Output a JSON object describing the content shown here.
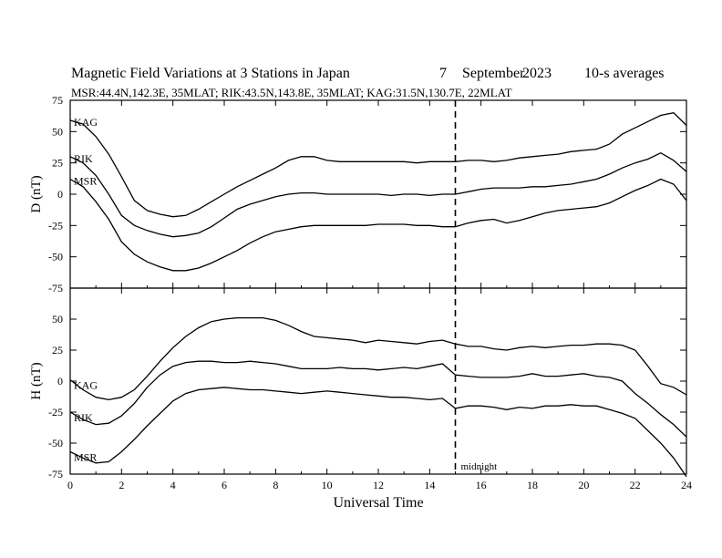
{
  "header": {
    "title": "Magnetic Field Variations at 3 Stations in Japan",
    "day": "7",
    "month": "September",
    "year": "2023",
    "averaging": "10-s averages",
    "stations_line": "MSR:44.4N,142.3E, 35MLAT;  RIK:43.5N,143.8E, 35MLAT;  KAG:31.5N,130.7E, 22MLAT"
  },
  "chart_data": [
    {
      "type": "line",
      "panel": "top",
      "ylabel": "D (nT)",
      "ylim": [
        -75,
        75
      ],
      "yticks": [
        75,
        50,
        25,
        0,
        -25,
        -50,
        -75
      ],
      "xlim": [
        0,
        24
      ],
      "xticks": [
        0,
        2,
        4,
        6,
        8,
        10,
        12,
        14,
        16,
        18,
        20,
        22,
        24
      ],
      "grid": false,
      "series": [
        {
          "name": "KAG",
          "x": [
            0,
            0.5,
            1,
            1.5,
            2,
            2.5,
            3,
            3.5,
            4,
            4.5,
            5,
            5.5,
            6,
            6.5,
            7,
            7.5,
            8,
            8.5,
            9,
            9.5,
            10,
            10.5,
            11,
            11.5,
            12,
            12.5,
            13,
            13.5,
            14,
            14.5,
            15,
            15.5,
            16,
            16.5,
            17,
            17.5,
            18,
            18.5,
            19,
            19.5,
            20,
            20.5,
            21,
            21.5,
            22,
            22.5,
            23,
            23.5,
            24
          ],
          "values": [
            59,
            56,
            46,
            32,
            14,
            -5,
            -13,
            -16,
            -18,
            -17,
            -12,
            -6,
            0,
            6,
            11,
            16,
            21,
            27,
            30,
            30,
            27,
            26,
            26,
            26,
            26,
            26,
            26,
            25,
            26,
            26,
            26,
            27,
            27,
            26,
            27,
            29,
            30,
            31,
            32,
            34,
            35,
            36,
            40,
            48,
            53,
            58,
            63,
            65,
            55
          ]
        },
        {
          "name": "RIK",
          "x": [
            0,
            0.5,
            1,
            1.5,
            2,
            2.5,
            3,
            3.5,
            4,
            4.5,
            5,
            5.5,
            6,
            6.5,
            7,
            7.5,
            8,
            8.5,
            9,
            9.5,
            10,
            10.5,
            11,
            11.5,
            12,
            12.5,
            13,
            13.5,
            14,
            14.5,
            15,
            15.5,
            16,
            16.5,
            17,
            17.5,
            18,
            18.5,
            19,
            19.5,
            20,
            20.5,
            21,
            21.5,
            22,
            22.5,
            23,
            23.5,
            24
          ],
          "values": [
            30,
            25,
            15,
            0,
            -17,
            -25,
            -29,
            -32,
            -34,
            -33,
            -31,
            -26,
            -19,
            -12,
            -8,
            -5,
            -2,
            0,
            1,
            1,
            0,
            0,
            0,
            0,
            0,
            -1,
            0,
            0,
            -1,
            0,
            0,
            2,
            4,
            5,
            5,
            5,
            6,
            6,
            7,
            8,
            10,
            12,
            16,
            21,
            25,
            28,
            33,
            27,
            18
          ]
        },
        {
          "name": "MSR",
          "x": [
            0,
            0.5,
            1,
            1.5,
            2,
            2.5,
            3,
            3.5,
            4,
            4.5,
            5,
            5.5,
            6,
            6.5,
            7,
            7.5,
            8,
            8.5,
            9,
            9.5,
            10,
            10.5,
            11,
            11.5,
            12,
            12.5,
            13,
            13.5,
            14,
            14.5,
            15,
            15.5,
            16,
            16.5,
            17,
            17.5,
            18,
            18.5,
            19,
            19.5,
            20,
            20.5,
            21,
            21.5,
            22,
            22.5,
            23,
            23.5,
            24
          ],
          "values": [
            12,
            6,
            -6,
            -20,
            -38,
            -48,
            -54,
            -58,
            -61,
            -61,
            -59,
            -55,
            -50,
            -45,
            -39,
            -34,
            -30,
            -28,
            -26,
            -25,
            -25,
            -25,
            -25,
            -25,
            -24,
            -24,
            -24,
            -25,
            -25,
            -26,
            -26,
            -23,
            -21,
            -20,
            -23,
            -21,
            -18,
            -15,
            -13,
            -12,
            -11,
            -10,
            -7,
            -2,
            3,
            7,
            12,
            8,
            -5
          ]
        }
      ]
    },
    {
      "type": "line",
      "panel": "bottom",
      "ylabel": "H (nT)",
      "xlabel": "Universal Time",
      "ylim": [
        -75,
        75
      ],
      "yticks": [
        50,
        25,
        0,
        -25,
        -50,
        -75
      ],
      "xlim": [
        0,
        24
      ],
      "xticks": [
        0,
        2,
        4,
        6,
        8,
        10,
        12,
        14,
        16,
        18,
        20,
        22,
        24
      ],
      "grid": false,
      "series": [
        {
          "name": "KAG",
          "x": [
            0,
            0.5,
            1,
            1.5,
            2,
            2.5,
            3,
            3.5,
            4,
            4.5,
            5,
            5.5,
            6,
            6.5,
            7,
            7.5,
            8,
            8.5,
            9,
            9.5,
            10,
            10.5,
            11,
            11.5,
            12,
            12.5,
            13,
            13.5,
            14,
            14.5,
            15,
            15.5,
            16,
            16.5,
            17,
            17.5,
            18,
            18.5,
            19,
            19.5,
            20,
            20.5,
            21,
            21.5,
            22,
            22.5,
            23,
            23.5,
            24
          ],
          "values": [
            1,
            -7,
            -13,
            -15,
            -13,
            -7,
            4,
            16,
            27,
            36,
            43,
            48,
            50,
            51,
            51,
            51,
            49,
            45,
            40,
            36,
            35,
            34,
            33,
            31,
            33,
            32,
            31,
            30,
            32,
            33,
            30,
            28,
            28,
            26,
            25,
            27,
            28,
            27,
            28,
            29,
            29,
            30,
            30,
            29,
            25,
            12,
            -2,
            -5,
            -11
          ]
        },
        {
          "name": "RIK",
          "x": [
            0,
            0.5,
            1,
            1.5,
            2,
            2.5,
            3,
            3.5,
            4,
            4.5,
            5,
            5.5,
            6,
            6.5,
            7,
            7.5,
            8,
            8.5,
            9,
            9.5,
            10,
            10.5,
            11,
            11.5,
            12,
            12.5,
            13,
            13.5,
            14,
            14.5,
            15,
            15.5,
            16,
            16.5,
            17,
            17.5,
            18,
            18.5,
            19,
            19.5,
            20,
            20.5,
            21,
            21.5,
            22,
            22.5,
            23,
            23.5,
            24
          ],
          "values": [
            -25,
            -31,
            -35,
            -34,
            -28,
            -18,
            -5,
            5,
            12,
            15,
            16,
            16,
            15,
            15,
            16,
            15,
            14,
            12,
            10,
            10,
            10,
            11,
            10,
            10,
            9,
            10,
            11,
            10,
            12,
            14,
            5,
            4,
            3,
            3,
            3,
            4,
            6,
            4,
            4,
            5,
            6,
            4,
            3,
            0,
            -10,
            -18,
            -27,
            -35,
            -45
          ]
        },
        {
          "name": "MSR",
          "x": [
            0,
            0.5,
            1,
            1.5,
            2,
            2.5,
            3,
            3.5,
            4,
            4.5,
            5,
            5.5,
            6,
            6.5,
            7,
            7.5,
            8,
            8.5,
            9,
            9.5,
            10,
            10.5,
            11,
            11.5,
            12,
            12.5,
            13,
            13.5,
            14,
            14.5,
            15,
            15.5,
            16,
            16.5,
            17,
            17.5,
            18,
            18.5,
            19,
            19.5,
            20,
            20.5,
            21,
            21.5,
            22,
            22.5,
            23,
            23.5,
            24
          ],
          "values": [
            -57,
            -62,
            -66,
            -65,
            -57,
            -47,
            -36,
            -26,
            -16,
            -10,
            -7,
            -6,
            -5,
            -6,
            -7,
            -7,
            -8,
            -9,
            -10,
            -9,
            -8,
            -9,
            -10,
            -11,
            -12,
            -13,
            -13,
            -14,
            -15,
            -14,
            -22,
            -20,
            -20,
            -21,
            -23,
            -21,
            -22,
            -20,
            -20,
            -19,
            -20,
            -20,
            -23,
            -26,
            -30,
            -40,
            -50,
            -62,
            -77
          ]
        }
      ]
    }
  ],
  "annotations": {
    "midnight_ut": 15,
    "midnight_label": "midnight"
  }
}
